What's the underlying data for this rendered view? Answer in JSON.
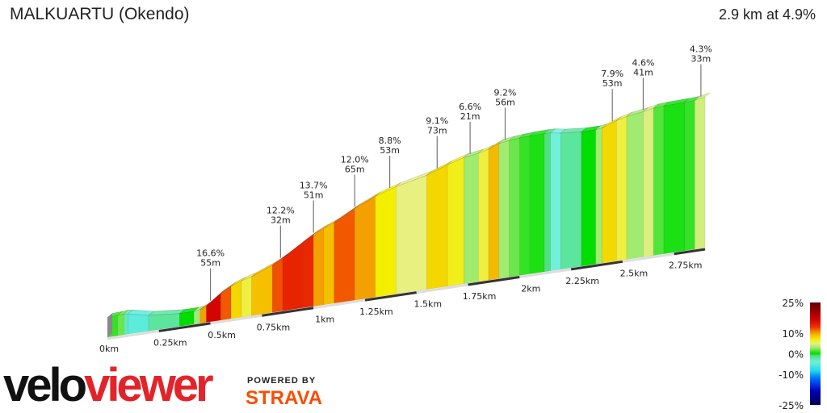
{
  "header": {
    "title": "MALKUARTU (Okendo)",
    "summary": "2.9 km at 4.9%"
  },
  "branding": {
    "logo_part1": "velo",
    "logo_part2": "viewer",
    "powered_by": "POWERED BY",
    "strava": "STRAVA"
  },
  "chart_data": {
    "type": "area",
    "description_units": {
      "x": "km",
      "gradient": "%"
    },
    "total_distance_km": 2.9,
    "average_gradient_pct": 4.9,
    "segments": [
      [
        0,
        1
      ],
      [
        0.05,
        2
      ],
      [
        0.08,
        -3
      ],
      [
        0.1,
        -5
      ],
      [
        0.2,
        -2
      ],
      [
        0.35,
        0
      ],
      [
        0.42,
        3
      ],
      [
        0.45,
        10
      ],
      [
        0.48,
        16.6
      ],
      [
        0.55,
        12
      ],
      [
        0.6,
        8
      ],
      [
        0.65,
        6
      ],
      [
        0.7,
        9
      ],
      [
        0.8,
        12.2
      ],
      [
        0.85,
        14
      ],
      [
        0.95,
        13.7
      ],
      [
        1.0,
        10
      ],
      [
        1.05,
        9
      ],
      [
        1.1,
        12
      ],
      [
        1.2,
        10
      ],
      [
        1.3,
        7
      ],
      [
        1.4,
        5
      ],
      [
        1.55,
        8
      ],
      [
        1.65,
        6.6
      ],
      [
        1.73,
        3
      ],
      [
        1.8,
        6
      ],
      [
        1.85,
        9.2
      ],
      [
        1.9,
        3
      ],
      [
        1.95,
        2
      ],
      [
        2.0,
        1
      ],
      [
        2.05,
        0.5
      ],
      [
        2.12,
        -1
      ],
      [
        2.15,
        -4
      ],
      [
        2.2,
        -2
      ],
      [
        2.3,
        0
      ],
      [
        2.37,
        3
      ],
      [
        2.4,
        7.9
      ],
      [
        2.47,
        6
      ],
      [
        2.52,
        3
      ],
      [
        2.6,
        4.6
      ],
      [
        2.65,
        1.5
      ],
      [
        2.7,
        0.5
      ],
      [
        2.8,
        1
      ],
      [
        2.85,
        4.3
      ]
    ],
    "annotations": [
      {
        "km": 0.5,
        "gradient": "16.6%",
        "length": "55m"
      },
      {
        "km": 0.84,
        "gradient": "12.2%",
        "length": "32m"
      },
      {
        "km": 1.0,
        "gradient": "13.7%",
        "length": "51m"
      },
      {
        "km": 1.2,
        "gradient": "12.0%",
        "length": "65m"
      },
      {
        "km": 1.37,
        "gradient": "8.8%",
        "length": "53m"
      },
      {
        "km": 1.6,
        "gradient": "9.1%",
        "length": "73m"
      },
      {
        "km": 1.76,
        "gradient": "6.6%",
        "length": "21m"
      },
      {
        "km": 1.93,
        "gradient": "9.2%",
        "length": "56m"
      },
      {
        "km": 2.45,
        "gradient": "7.9%",
        "length": "53m"
      },
      {
        "km": 2.6,
        "gradient": "4.6%",
        "length": "41m"
      },
      {
        "km": 2.88,
        "gradient": "4.3%",
        "length": "33m"
      }
    ],
    "x_ticks": [
      "0km",
      "0.25km",
      "0.5km",
      "0.75km",
      "1km",
      "1.25km",
      "1.5km",
      "1.75km",
      "2km",
      "2.25km",
      "2.5km",
      "2.75km"
    ],
    "colorbar": {
      "labels": [
        "25%",
        "10%",
        "0%",
        "-10%",
        "-25%"
      ],
      "range": [
        -25,
        25
      ],
      "stops": [
        [
          -25,
          "#000050"
        ],
        [
          -18,
          "#0000c0"
        ],
        [
          -12,
          "#0070ff"
        ],
        [
          -8,
          "#20e0e8"
        ],
        [
          -4,
          "#70f0d8"
        ],
        [
          -1,
          "#50e080"
        ],
        [
          0,
          "#00dd00"
        ],
        [
          3,
          "#a0ec70"
        ],
        [
          5,
          "#e8f080"
        ],
        [
          7,
          "#f4ee00"
        ],
        [
          9,
          "#f5c000"
        ],
        [
          11,
          "#f28000"
        ],
        [
          13,
          "#f03000"
        ],
        [
          17,
          "#d00000"
        ],
        [
          25,
          "#600000"
        ]
      ]
    }
  }
}
